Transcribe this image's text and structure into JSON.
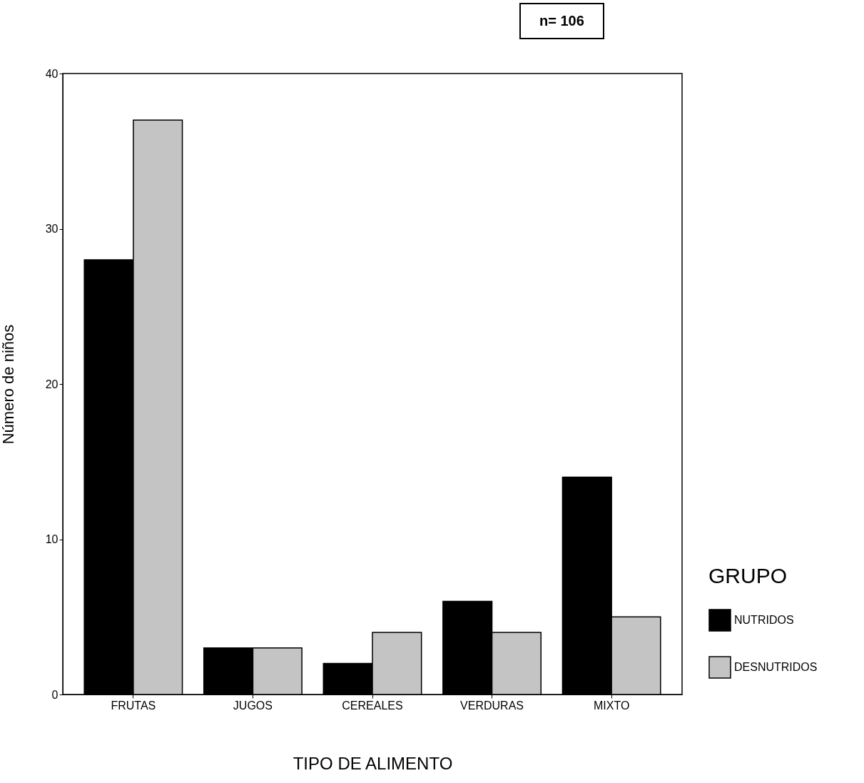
{
  "chart_data": {
    "type": "bar",
    "xlabel": "TIPO DE ALIMENTO",
    "ylabel": "Número de niños",
    "legend_title": "GRUPO",
    "annotations": [
      "n= 106"
    ],
    "categories": [
      "FRUTAS",
      "JUGOS",
      "CEREALES",
      "VERDURAS",
      "MIXTO"
    ],
    "series": [
      {
        "name": "NUTRIDOS",
        "color": "#000000",
        "values": [
          28,
          3,
          2,
          6,
          14
        ]
      },
      {
        "name": "DESNUTRIDOS",
        "color": "#c4c4c4",
        "values": [
          37,
          3,
          4,
          4,
          5
        ]
      }
    ],
    "ylim": [
      0,
      40
    ],
    "yticks": [
      0,
      10,
      20,
      30,
      40
    ],
    "grid": false,
    "legend": "right"
  }
}
